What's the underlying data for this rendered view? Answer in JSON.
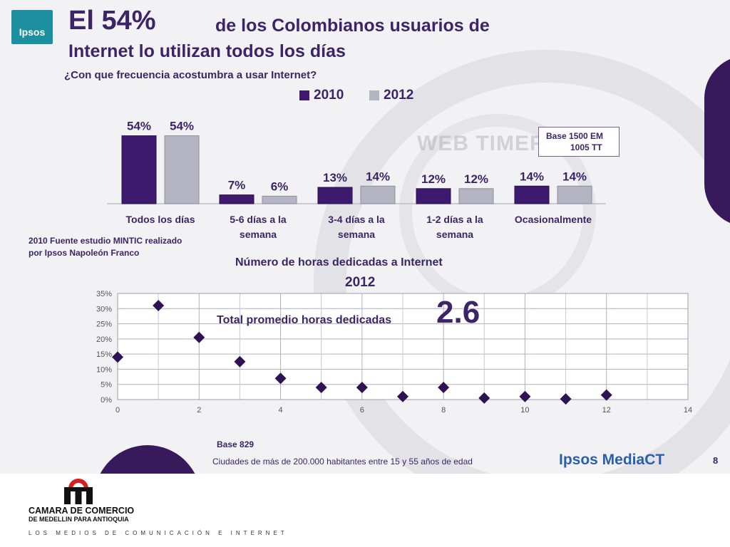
{
  "logo": {
    "text": "Ipsos"
  },
  "title": {
    "big": "El 54%",
    "rest": "de los Colombianos usuarios de",
    "line2": "Internet lo utilizan todos los días"
  },
  "question": "¿Con que frecuencia acostumbra a usar Internet?",
  "legend": [
    {
      "label": "2010",
      "color": "#3d1a6e"
    },
    {
      "label": "2012",
      "color": "#b4b4c2"
    }
  ],
  "base_box": {
    "line1": "Base 1500 EM",
    "line2": "1005 TT"
  },
  "background_text": "WEB TIMER",
  "source_note": "2010 Fuente estudio MINTIC realizado por Ipsos Napoleón Franco",
  "chart_data": [
    {
      "type": "bar",
      "title": "",
      "categories": [
        [
          "Todos los días"
        ],
        [
          "5-6 días a la",
          "semana"
        ],
        [
          "3-4 días a la",
          "semana"
        ],
        [
          "1-2 días a la",
          "semana"
        ],
        [
          "Ocasionalmente"
        ]
      ],
      "series": [
        {
          "name": "2010",
          "values": [
            54,
            7,
            13,
            12,
            14
          ],
          "labels": [
            "54%",
            "7%",
            "13%",
            "12%",
            "14%"
          ],
          "color": "#3d1a6e"
        },
        {
          "name": "2012",
          "values": [
            54,
            6,
            14,
            12,
            14
          ],
          "labels": [
            "54%",
            "6%",
            "14%",
            "12%",
            "14%"
          ],
          "color": "#b4b4c2"
        }
      ],
      "ylim": [
        0,
        60
      ],
      "grid": false,
      "legend": "top-right"
    },
    {
      "type": "scatter",
      "title": "Número de horas dedicadas a Internet",
      "subtitle": "2012",
      "x": [
        0,
        1,
        2,
        3,
        4,
        5,
        6,
        7,
        8,
        9,
        10,
        11,
        12
      ],
      "y": [
        14,
        31,
        20.5,
        12.5,
        7,
        4,
        4,
        1,
        4,
        0.5,
        1,
        0.2,
        1.5
      ],
      "xlim": [
        0,
        14
      ],
      "ylim": [
        0,
        35
      ],
      "xticks": [
        "0",
        "2",
        "4",
        "6",
        "8",
        "10",
        "12",
        "14"
      ],
      "yticks": [
        "0%",
        "5%",
        "10%",
        "15%",
        "20%",
        "25%",
        "30%",
        "35%"
      ],
      "grid": true,
      "marker_color": "#2e1254"
    }
  ],
  "total": {
    "label": "Total promedio horas dedicadas",
    "value": "2.6"
  },
  "footer": {
    "base": "Base 829",
    "cities": "Ciudades de más de 200.000 habitantes entre 15 y 55 años de edad",
    "brand": "Ipsos MediaCT",
    "page": "8"
  },
  "ccm": {
    "line1": "CAMARA DE COMERCIO",
    "line2": "DE MEDELLIN PARA ANTIOQUIA",
    "tagline": "LOS MEDIOS DE COMUNICACIÓN E INTERNET"
  }
}
